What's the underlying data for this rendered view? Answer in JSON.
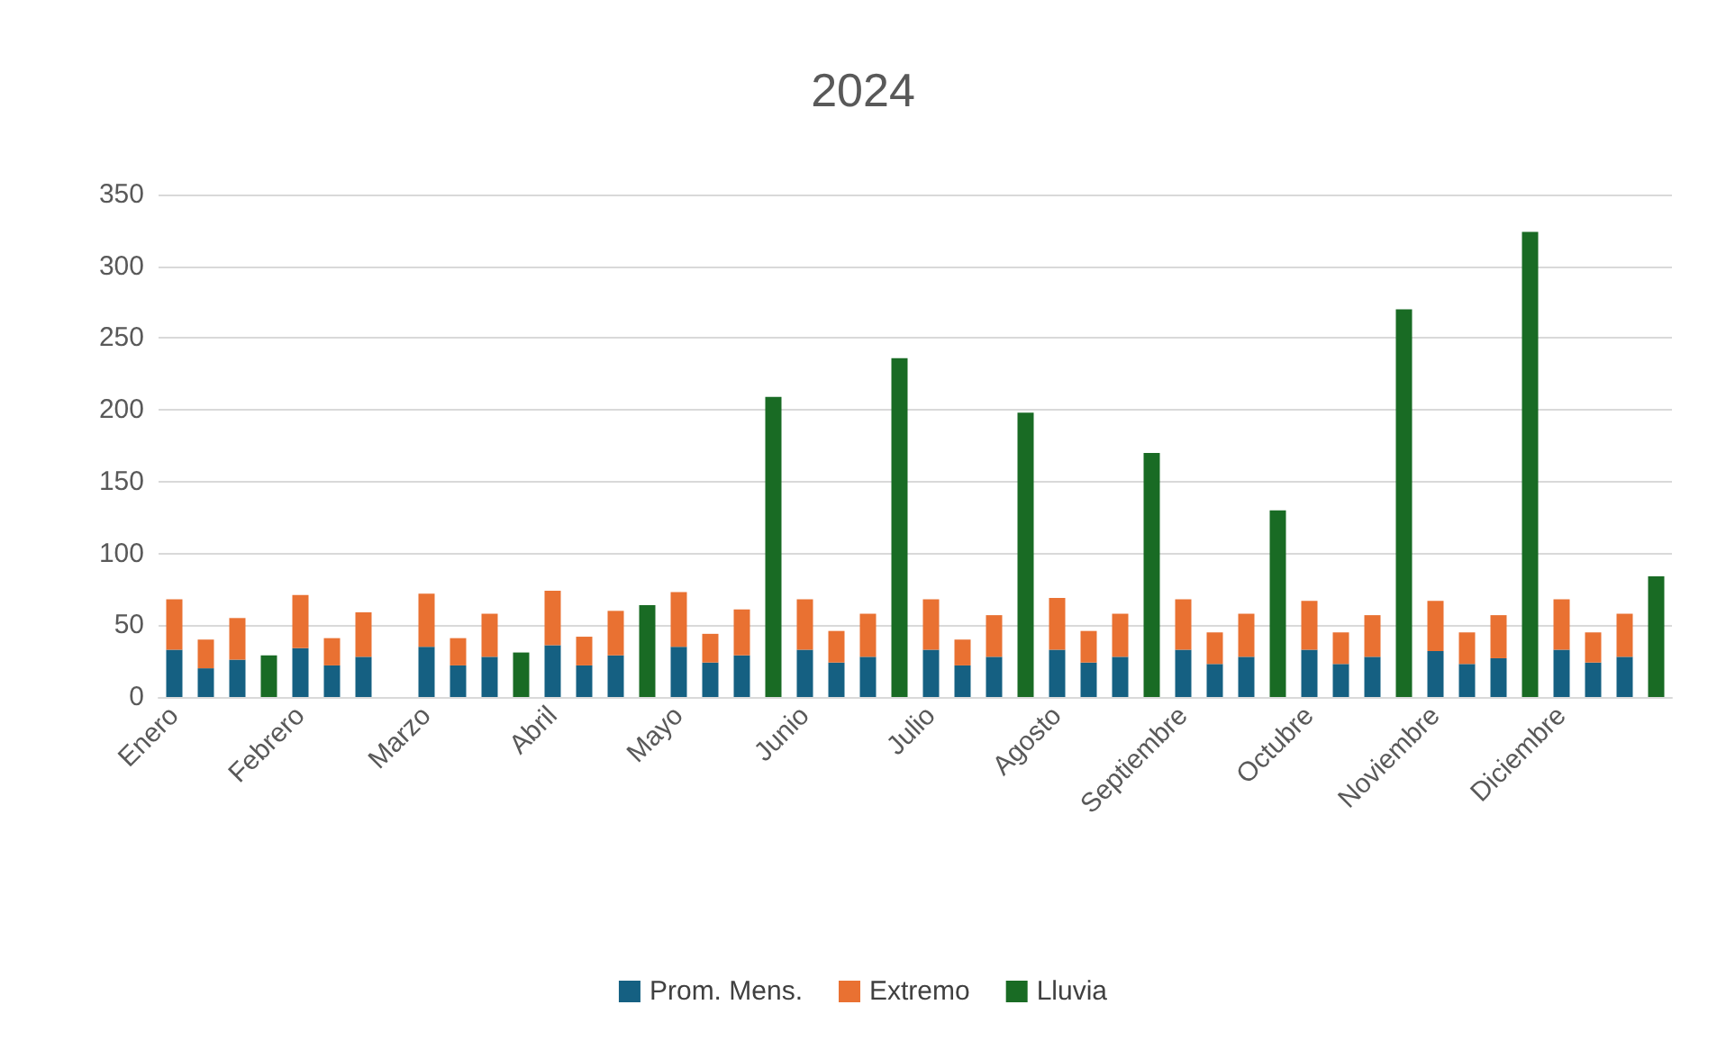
{
  "chart_data": {
    "type": "bar",
    "title": "2024",
    "stacked": true,
    "grid": "y",
    "legend": "bottom",
    "categories": [
      "Enero",
      null,
      null,
      null,
      "Febrero",
      null,
      null,
      null,
      "Marzo",
      null,
      null,
      null,
      "Abril",
      null,
      null,
      null,
      "Mayo",
      null,
      null,
      null,
      "Junio",
      null,
      null,
      null,
      "Julio",
      null,
      null,
      null,
      "Agosto",
      null,
      null,
      null,
      "Septiembre",
      null,
      null,
      null,
      "Octubre",
      null,
      null,
      null,
      "Noviembre",
      null,
      null,
      null,
      "Diciembre",
      null,
      null,
      null
    ],
    "series": [
      {
        "name": "Prom. Mens.",
        "color": "#156082",
        "values": [
          33,
          20,
          26,
          null,
          34,
          22,
          28,
          null,
          35,
          22,
          28,
          null,
          36,
          22,
          29,
          null,
          35,
          24,
          29,
          null,
          33,
          24,
          28,
          null,
          33,
          22,
          28,
          null,
          33,
          24,
          28,
          null,
          33,
          23,
          28,
          null,
          33,
          23,
          28,
          null,
          32,
          23,
          27,
          null,
          33,
          24,
          28,
          null
        ]
      },
      {
        "name": "Extremo",
        "color": "#e97132",
        "values": [
          35,
          20,
          29,
          null,
          37,
          19,
          31,
          null,
          37,
          19,
          30,
          null,
          38,
          20,
          31,
          null,
          38,
          20,
          32,
          null,
          35,
          22,
          30,
          null,
          35,
          18,
          29,
          null,
          36,
          22,
          30,
          null,
          35,
          22,
          30,
          null,
          34,
          22,
          29,
          null,
          35,
          22,
          30,
          null,
          35,
          21,
          30,
          null
        ]
      },
      {
        "name": "Lluvia",
        "color": "#196b24",
        "values": [
          null,
          null,
          null,
          29,
          null,
          null,
          null,
          null,
          null,
          null,
          null,
          31,
          null,
          null,
          null,
          64,
          null,
          null,
          null,
          209,
          null,
          null,
          null,
          236,
          null,
          null,
          null,
          198,
          null,
          null,
          null,
          170,
          null,
          null,
          null,
          130,
          null,
          null,
          null,
          270,
          null,
          null,
          null,
          324,
          null,
          null,
          null,
          84
        ]
      }
    ],
    "ylim": [
      0,
      350
    ],
    "yticks": [
      0,
      50,
      100,
      150,
      200,
      250,
      300,
      350
    ]
  }
}
